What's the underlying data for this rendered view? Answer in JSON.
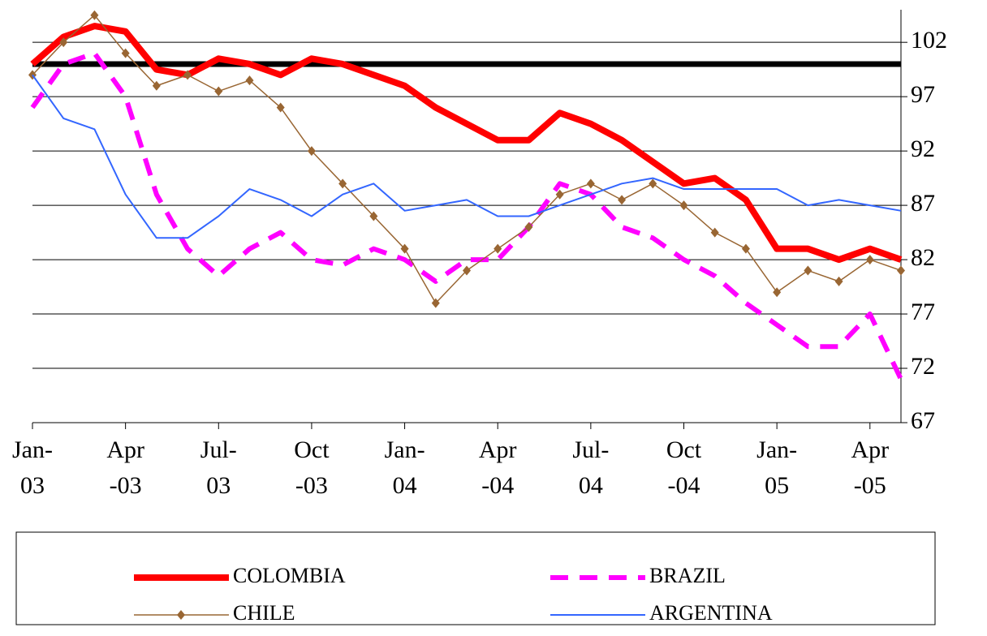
{
  "chart_data": {
    "type": "line",
    "x": [
      "2003-01",
      "2003-02",
      "2003-03",
      "2003-04",
      "2003-05",
      "2003-06",
      "2003-07",
      "2003-08",
      "2003-09",
      "2003-10",
      "2003-11",
      "2003-12",
      "2004-01",
      "2004-02",
      "2004-03",
      "2004-04",
      "2004-05",
      "2004-06",
      "2004-07",
      "2004-08",
      "2004-09",
      "2004-10",
      "2004-11",
      "2004-12",
      "2005-01",
      "2005-02",
      "2005-03",
      "2005-04",
      "2005-05"
    ],
    "series": [
      {
        "name": "COLOMBIA",
        "color": "#ff0000",
        "values": [
          100,
          102.5,
          103.5,
          103,
          99.5,
          99,
          100.5,
          100,
          99,
          100.5,
          100,
          99,
          98,
          96,
          94.5,
          93,
          93,
          95.5,
          94.5,
          93,
          91,
          89,
          89.5,
          87.5,
          83,
          83,
          82,
          83,
          82
        ]
      },
      {
        "name": "BRAZIL",
        "color": "#ff00ff",
        "values": [
          96,
          100,
          101,
          97,
          88,
          83,
          80.5,
          83,
          84.5,
          82,
          81.5,
          83,
          82,
          80,
          82,
          82,
          85,
          89,
          88,
          85,
          84,
          82,
          80.5,
          78,
          76,
          74,
          74,
          77,
          71
        ]
      },
      {
        "name": "CHILE",
        "color": "#996633",
        "values": [
          99,
          102,
          104.5,
          101,
          98,
          99,
          97.5,
          98.5,
          96,
          92,
          89,
          86,
          83,
          78,
          81,
          83,
          85,
          88,
          89,
          87.5,
          89,
          87,
          84.5,
          83,
          79,
          81,
          80,
          82,
          81
        ]
      },
      {
        "name": "ARGENTINA",
        "color": "#3366ff",
        "values": [
          99,
          95,
          94,
          88,
          84,
          84,
          86,
          88.5,
          87.5,
          86,
          88,
          89,
          86.5,
          87,
          87.5,
          86,
          86,
          87,
          88,
          89,
          89.5,
          88.5,
          88.5,
          88.5,
          88.5,
          87,
          87.5,
          87,
          86.5
        ]
      }
    ],
    "reference_line": {
      "value": 100,
      "color": "#000000"
    },
    "xlim": [
      "2003-01",
      "2005-05"
    ],
    "xticks": [
      {
        "value": "2003-01",
        "label": [
          "Jan-",
          "03"
        ]
      },
      {
        "value": "2003-04",
        "label": [
          "Apr",
          "-03"
        ]
      },
      {
        "value": "2003-07",
        "label": [
          "Jul-",
          "03"
        ]
      },
      {
        "value": "2003-10",
        "label": [
          "Oct",
          "-03"
        ]
      },
      {
        "value": "2004-01",
        "label": [
          "Jan-",
          "04"
        ]
      },
      {
        "value": "2004-04",
        "label": [
          "Apr",
          "-04"
        ]
      },
      {
        "value": "2004-07",
        "label": [
          "Jul-",
          "04"
        ]
      },
      {
        "value": "2004-10",
        "label": [
          "Oct",
          "-04"
        ]
      },
      {
        "value": "2005-01",
        "label": [
          "Jan-",
          "05"
        ]
      },
      {
        "value": "2005-04",
        "label": [
          "Apr",
          "-05"
        ]
      }
    ],
    "ylim": [
      67,
      105
    ],
    "yticks": [
      67,
      72,
      77,
      82,
      87,
      92,
      97,
      102
    ],
    "grid": true,
    "legend": "bottom"
  }
}
